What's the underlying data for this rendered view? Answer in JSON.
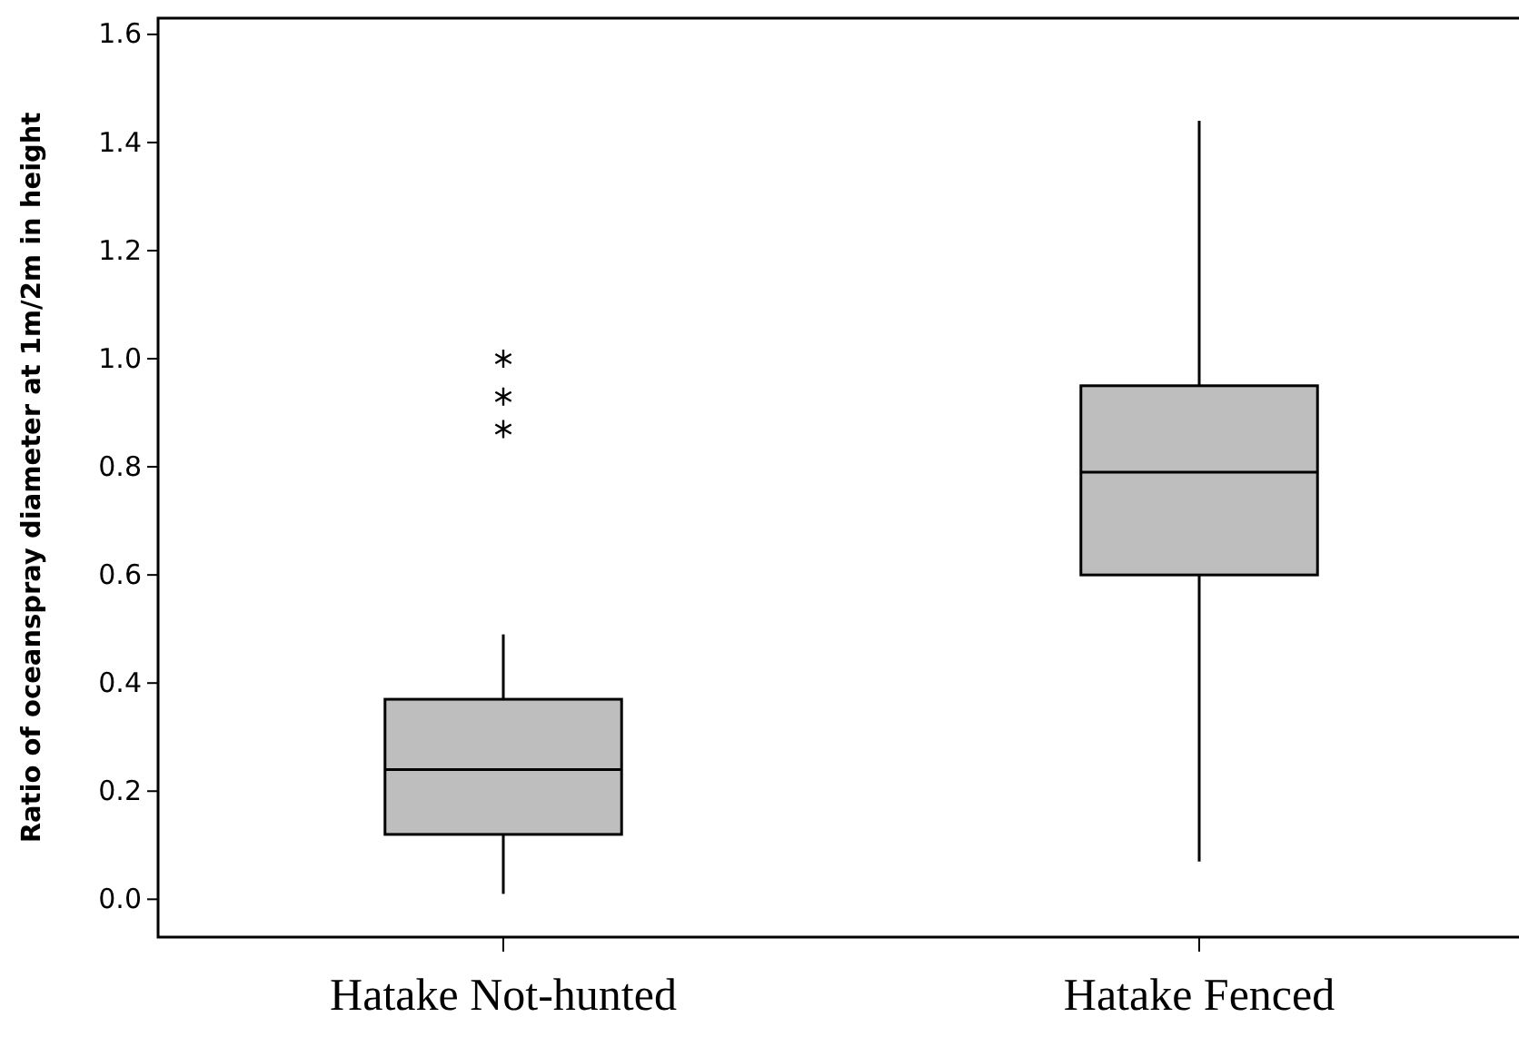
{
  "chart_data": {
    "type": "box",
    "ylabel": "Ratio of oceanspray diameter at 1m/2m in height",
    "categories": [
      "Hatake Not-hunted",
      "Hatake Fenced"
    ],
    "color": "#bebebe",
    "boxes": [
      {
        "low": 0.01,
        "q1": 0.12,
        "median": 0.24,
        "q3": 0.37,
        "high": 0.49,
        "outliers": [
          0.87,
          0.93,
          1.0
        ]
      },
      {
        "low": 0.07,
        "q1": 0.6,
        "median": 0.79,
        "q3": 0.95,
        "high": 1.44
      }
    ],
    "ylim": [
      -0.07,
      1.63
    ],
    "yticks": [
      {
        "value": 0,
        "label": "0.0"
      },
      0.2,
      0.4,
      0.6,
      0.8,
      {
        "value": 1,
        "label": "1.0"
      },
      1.2,
      1.4,
      1.6
    ],
    "marker": "star",
    "grid": false
  }
}
